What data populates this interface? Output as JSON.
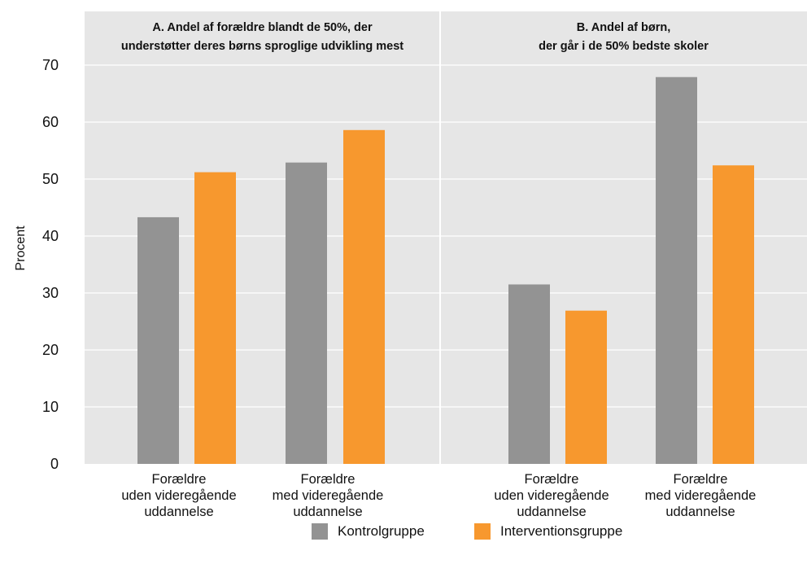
{
  "chart_data": {
    "type": "bar",
    "ylabel": "Procent",
    "ylim": [
      0,
      70
    ],
    "yticks": [
      0,
      10,
      20,
      30,
      40,
      50,
      60,
      70
    ],
    "grid": true,
    "legend_position": "bottom",
    "colors": {
      "Kontrolgruppe": "#939393",
      "Interventionsgruppe": "#f7982e"
    },
    "series_names": [
      "Kontrolgruppe",
      "Interventionsgruppe"
    ],
    "panels": [
      {
        "title_lines": [
          "A. Andel af forældre blandt de 50%, der",
          "understøtter deres børns sproglige udvikling mest"
        ],
        "categories": [
          [
            "Forældre",
            "uden videregående",
            "uddannelse"
          ],
          [
            "Forældre",
            "med videregående",
            "uddannelse"
          ]
        ],
        "series": [
          {
            "name": "Kontrolgruppe",
            "values": [
              43.3,
              52.9
            ]
          },
          {
            "name": "Interventionsgruppe",
            "values": [
              51.2,
              58.6
            ]
          }
        ]
      },
      {
        "title_lines": [
          "B. Andel af børn,",
          "der går i de 50% bedste skoler"
        ],
        "categories": [
          [
            "Forældre",
            "uden videregående",
            "uddannelse"
          ],
          [
            "Forældre",
            "med videregående",
            "uddannelse"
          ]
        ],
        "series": [
          {
            "name": "Kontrolgruppe",
            "values": [
              31.5,
              67.9
            ]
          },
          {
            "name": "Interventionsgruppe",
            "values": [
              26.9,
              52.4
            ]
          }
        ]
      }
    ]
  },
  "legend": {
    "items": [
      {
        "label": "Kontrolgruppe",
        "color": "#939393"
      },
      {
        "label": "Interventionsgruppe",
        "color": "#f7982e"
      }
    ]
  }
}
